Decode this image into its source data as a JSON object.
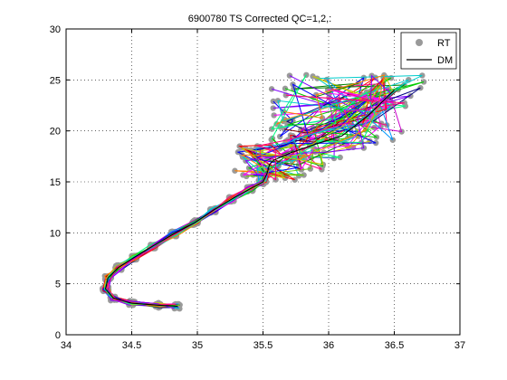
{
  "chart_data": {
    "type": "line",
    "title": "6900780  TS Corrected QC=1,2,:",
    "xlabel": "",
    "ylabel": "",
    "xlim": [
      34,
      37
    ],
    "ylim": [
      0,
      30
    ],
    "x_ticks": [
      "34",
      "34.5",
      "35",
      "35.5",
      "36",
      "36.5",
      "37"
    ],
    "y_ticks": [
      "0",
      "5",
      "10",
      "15",
      "20",
      "25",
      "30"
    ],
    "grid": "dotted",
    "legend_position": "top-right",
    "legend": [
      {
        "label": "RT",
        "style": "marker",
        "color": "#999999"
      },
      {
        "label": "DM",
        "style": "line",
        "color": "#000000"
      }
    ],
    "rt_color": "#9a9a9a",
    "series": [
      {
        "name": "RT",
        "x": [
          34.85,
          34.7,
          34.5,
          34.36,
          34.3,
          34.32,
          34.4,
          34.52,
          34.66,
          34.82,
          34.98,
          35.12,
          35.26,
          35.4,
          35.5,
          35.53,
          35.55,
          35.58,
          35.7,
          35.9,
          36.1,
          36.3,
          36.5
        ],
        "y": [
          2.8,
          2.9,
          3.1,
          3.6,
          4.5,
          5.6,
          6.6,
          7.6,
          8.7,
          9.9,
          11.0,
          12.2,
          13.3,
          14.3,
          15.0,
          15.8,
          16.7,
          17.1,
          17.8,
          18.7,
          19.5,
          21.5,
          24.0
        ]
      },
      {
        "name": "DM",
        "x": [
          34.85,
          34.7,
          34.5,
          34.36,
          34.3,
          34.32,
          34.4,
          34.52,
          34.66,
          34.82,
          34.98,
          35.12,
          35.26,
          35.4,
          35.5,
          35.53,
          35.55,
          35.58,
          35.7,
          35.9,
          36.1,
          36.3,
          36.5
        ],
        "y": [
          2.8,
          2.9,
          3.1,
          3.6,
          4.5,
          5.6,
          6.6,
          7.6,
          8.7,
          9.9,
          11.0,
          12.2,
          13.3,
          14.3,
          15.0,
          15.8,
          16.7,
          17.1,
          17.8,
          18.7,
          19.5,
          21.5,
          24.0
        ]
      }
    ],
    "profile_colors": [
      "#ff0000",
      "#00cc00",
      "#0000ff",
      "#ff00ff",
      "#00cccc",
      "#cccc00",
      "#ff8000",
      "#8000ff",
      "#00ff80",
      "#ff0080",
      "#008000",
      "#800000",
      "#000080",
      "#66cc00",
      "#cc00cc",
      "#0099ff"
    ]
  }
}
